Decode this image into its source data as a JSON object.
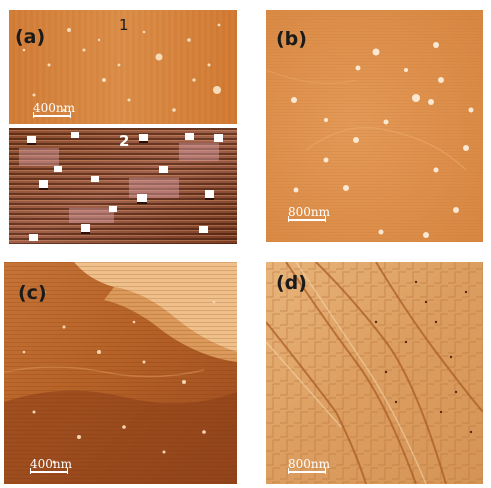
{
  "figure": {
    "panels": [
      {
        "id": "a",
        "label": "(a)",
        "sub_top": "1",
        "sub_bottom": "2",
        "scale_bar": "400nm"
      },
      {
        "id": "b",
        "label": "(b)",
        "scale_bar": "800nm"
      },
      {
        "id": "c",
        "label": "(c)",
        "scale_bar": "400nm"
      },
      {
        "id": "d",
        "label": "(d)",
        "scale_bar": "800nm"
      }
    ]
  }
}
